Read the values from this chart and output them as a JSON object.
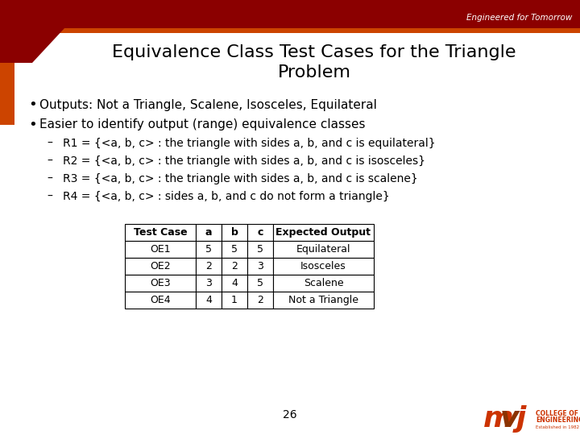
{
  "title_line1": "Equivalence Class Test Cases for the Triangle",
  "title_line2": "Problem",
  "bullet1": "Outputs: Not a Triangle, Scalene, Isosceles, Equilateral",
  "bullet2": "Easier to identify output (range) equivalence classes",
  "dash1": "R1 = {<a, b, c> : the triangle with sides a, b, and c is equilateral}",
  "dash2": "R2 = {<a, b, c> : the triangle with sides a, b, and c is isosceles}",
  "dash3": "R3 = {<a, b, c> : the triangle with sides a, b, and c is scalene}",
  "dash4": "R4 = {<a, b, c> : sides a, b, and c do not form a triangle}",
  "table_headers": [
    "Test Case",
    "a",
    "b",
    "c",
    "Expected Output"
  ],
  "table_rows": [
    [
      "OE1",
      "5",
      "5",
      "5",
      "Equilateral"
    ],
    [
      "OE2",
      "2",
      "2",
      "3",
      "Isosceles"
    ],
    [
      "OE3",
      "3",
      "4",
      "5",
      "Scalene"
    ],
    [
      "OE4",
      "4",
      "1",
      "2",
      "Not a Triangle"
    ]
  ],
  "header_bar_color": "#8B0000",
  "orange_accent": "#CC4400",
  "bg_color": "#FFFFFF",
  "title_color": "#000000",
  "engineered_text": "Engineered for Tomorrow",
  "page_number": "26",
  "mvj_m_color": "#CC3300",
  "mvj_v_color": "#8B4513",
  "mvj_j_color": "#CC3300"
}
